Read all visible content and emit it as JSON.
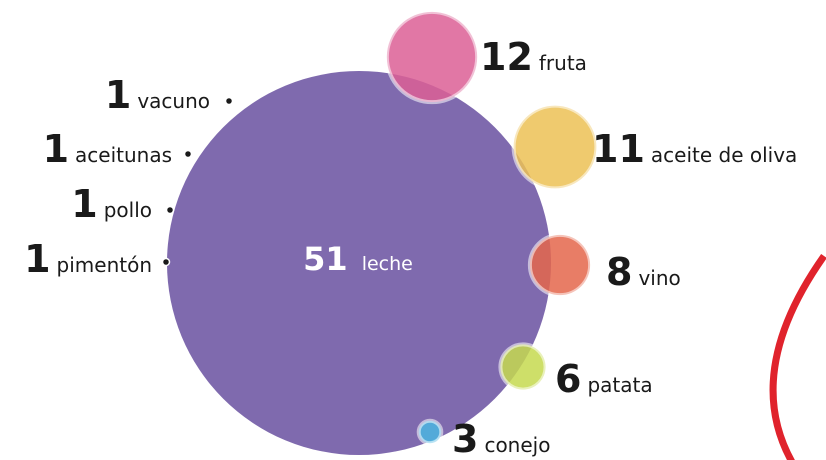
{
  "chart_data": {
    "type": "bubble",
    "categories": [
      "leche",
      "fruta",
      "aceite de oliva",
      "vino",
      "patata",
      "conejo",
      "vacuno",
      "aceitunas",
      "pollo",
      "pimentón"
    ],
    "values": [
      51,
      12,
      11,
      8,
      6,
      3,
      1,
      1,
      1,
      1
    ],
    "colors": [
      "#7f6aae",
      "#dc5f95",
      "#ecc155",
      "#e4664b",
      "#c6d94f",
      "#4bb5e1",
      "#1a1a1a",
      "#1a1a1a",
      "#1a1a1a",
      "#1a1a1a"
    ]
  }
}
